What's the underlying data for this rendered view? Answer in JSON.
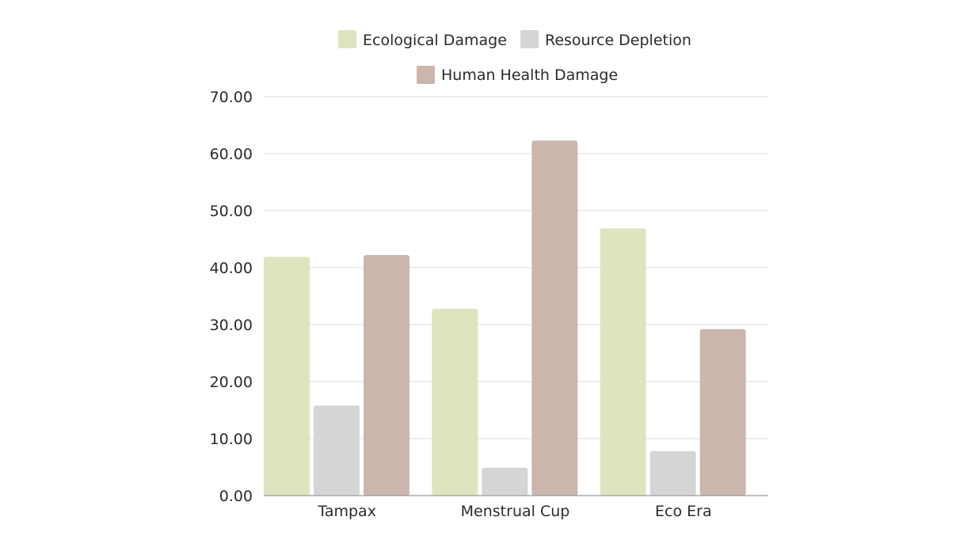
{
  "chart_data": {
    "type": "bar",
    "title": "",
    "xlabel": "",
    "ylabel": "",
    "categories": [
      "Tampax",
      "Menstrual Cup",
      "Eco Era"
    ],
    "series": [
      {
        "name": "Ecological Damage",
        "color": "#dde5c0",
        "values": [
          41.9,
          32.8,
          46.9
        ]
      },
      {
        "name": "Resource Depletion",
        "color": "#d3d5d6",
        "values": [
          15.8,
          4.9,
          7.8
        ]
      },
      {
        "name": "Human Health Damage",
        "color": "#cbb6ae",
        "values": [
          42.2,
          62.3,
          29.2
        ]
      }
    ],
    "ylim": [
      0,
      70
    ],
    "yticks": [
      "0.00",
      "10.00",
      "20.00",
      "30.00",
      "40.00",
      "50.00",
      "60.00",
      "70.00"
    ],
    "ytick_values": [
      0,
      10,
      20,
      30,
      40,
      50,
      60,
      70
    ],
    "grid": true,
    "legend_position": "top-center"
  }
}
